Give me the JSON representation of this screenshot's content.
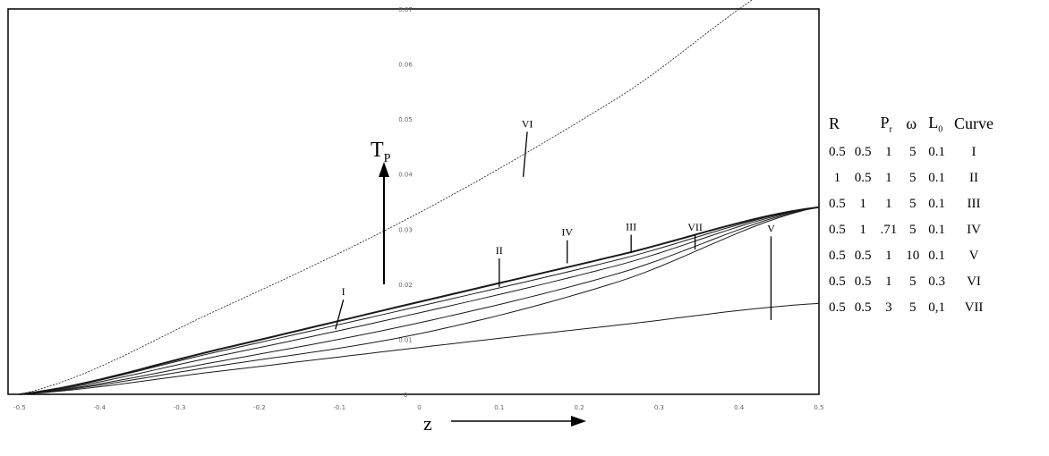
{
  "chart_data": {
    "type": "line",
    "xlabel": "z",
    "ylabel": "T",
    "ylabel_sub": "P",
    "xlim": [
      -0.5,
      0.5
    ],
    "ylim": [
      0,
      0.07
    ],
    "xticks": [
      "-0.5",
      "-0.4",
      "-0.3",
      "-0.2",
      "-0.1",
      "0",
      "0.1",
      "0.2",
      "0.3",
      "0.4",
      "0.5"
    ],
    "yticks": [
      "0",
      "0.01",
      "0.02",
      "0.03",
      "0.04",
      "0.05",
      "0.06",
      "0.07"
    ],
    "series": [
      {
        "name": "I",
        "x": [
          -0.5,
          -0.25,
          0,
          0.25,
          0.5
        ],
        "y": [
          0,
          0.0082,
          0.0168,
          0.0253,
          0.034
        ]
      },
      {
        "name": "II",
        "x": [
          -0.5,
          -0.25,
          0,
          0.25,
          0.5
        ],
        "y": [
          0,
          0.0078,
          0.016,
          0.0245,
          0.034
        ]
      },
      {
        "name": "III",
        "x": [
          -0.5,
          -0.25,
          0,
          0.25,
          0.5
        ],
        "y": [
          0,
          0.007,
          0.0148,
          0.0235,
          0.034
        ]
      },
      {
        "name": "IV",
        "x": [
          -0.5,
          -0.25,
          0,
          0.25,
          0.5
        ],
        "y": [
          0,
          0.006,
          0.013,
          0.022,
          0.034
        ]
      },
      {
        "name": "V",
        "x": [
          -0.5,
          -0.25,
          0,
          0.25,
          0.5
        ],
        "y": [
          0,
          0.0042,
          0.0085,
          0.0126,
          0.0165
        ]
      },
      {
        "name": "VI",
        "x": [
          -0.5,
          -0.25,
          0,
          0.25,
          0.5
        ],
        "y": [
          0,
          0.0155,
          0.033,
          0.054,
          0.078
        ]
      },
      {
        "name": "VII",
        "x": [
          -0.5,
          -0.25,
          0,
          0.25,
          0.5
        ],
        "y": [
          0,
          0.0052,
          0.011,
          0.0205,
          0.034
        ]
      }
    ],
    "curve_labels": [
      {
        "text": "I",
        "x": -0.095,
        "y": 0.018,
        "px": -0.105,
        "py": 0.0118
      },
      {
        "text": "II",
        "x": 0.1,
        "y": 0.0255,
        "px": 0.1,
        "py": 0.0195
      },
      {
        "text": "IV",
        "x": 0.185,
        "y": 0.0288,
        "px": 0.185,
        "py": 0.0238
      },
      {
        "text": "III",
        "x": 0.265,
        "y": 0.0298,
        "px": 0.265,
        "py": 0.0257
      },
      {
        "text": "VII",
        "x": 0.345,
        "y": 0.0297,
        "px": 0.345,
        "py": 0.0263
      },
      {
        "text": "V",
        "x": 0.44,
        "y": 0.0295,
        "px": 0.44,
        "py": 0.0135
      },
      {
        "text": "VI",
        "x": 0.135,
        "y": 0.0485,
        "px": 0.13,
        "py": 0.0395
      }
    ],
    "grid": false
  },
  "legend_table": {
    "headers": [
      {
        "main": "R",
        "sub": ""
      },
      {
        "main": "",
        "sub": ""
      },
      {
        "main": "P",
        "sub": "r"
      },
      {
        "main": "ω",
        "sub": ""
      },
      {
        "main": "L",
        "sub": "0"
      },
      {
        "main": "Curve",
        "sub": ""
      }
    ],
    "rows": [
      [
        "0.5",
        "0.5",
        "1",
        "5",
        "0.1",
        "I"
      ],
      [
        "1",
        "0.5",
        "1",
        "5",
        "0.1",
        "II"
      ],
      [
        "0.5",
        "1",
        "1",
        "5",
        "0.1",
        "III"
      ],
      [
        "0.5",
        "1",
        ".71",
        "5",
        "0.1",
        "IV"
      ],
      [
        "0.5",
        "0.5",
        "1",
        "10",
        "0.1",
        "V"
      ],
      [
        "0.5",
        "0.5",
        "1",
        "5",
        "0.3",
        "VI"
      ],
      [
        "0.5",
        "0.5",
        "3",
        "5",
        "0,1",
        "VII"
      ]
    ]
  },
  "colors": {
    "curve": "#1a1a1a",
    "frame": "#000000"
  }
}
